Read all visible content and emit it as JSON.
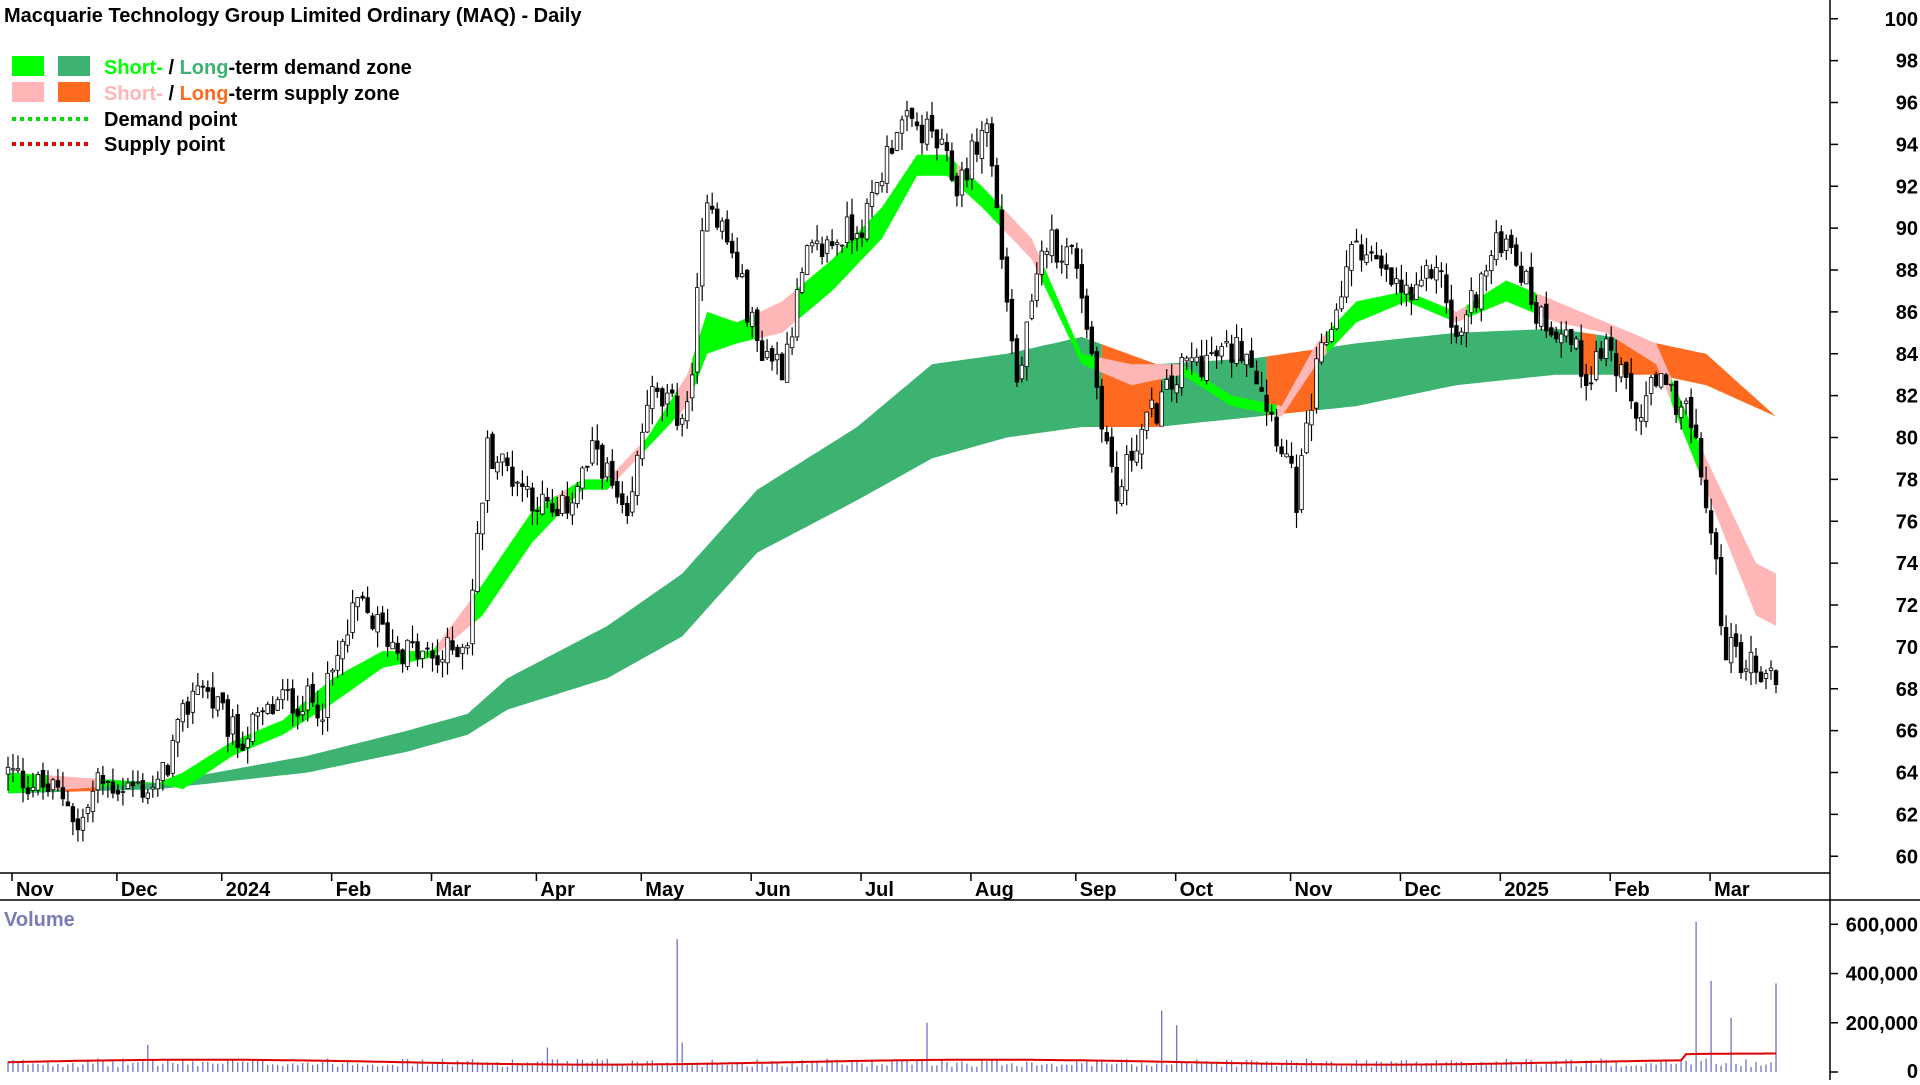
{
  "title": "Macquarie Technology Group Limited Ordinary (MAQ) - Daily",
  "legend": {
    "demand": {
      "short": "Short-",
      "slash": " / ",
      "long": "Long",
      "rest": "-term demand zone"
    },
    "supply": {
      "short": "Short-",
      "slash": " / ",
      "long": "Long",
      "rest": "-term supply zone"
    },
    "demand_point": "Demand point",
    "supply_point": "Supply point"
  },
  "volume_label": "Volume",
  "colors": {
    "short_demand": "#00ff00",
    "long_demand": "#3cb371",
    "short_supply": "#ffb6b6",
    "long_supply": "#ff6a21",
    "demand_point": "#00dd00",
    "supply_point": "#ee0000",
    "volume_bar": "#7070c8",
    "volume_avg": "#dd0000"
  },
  "chart_data": [
    {
      "type": "candlestick",
      "title": "Macquarie Technology Group Limited Ordinary (MAQ) - Daily",
      "x_ticks": [
        "Nov",
        "Dec",
        "2024",
        "Feb",
        "Mar",
        "Apr",
        "May",
        "Jun",
        "Jul",
        "Aug",
        "Sep",
        "Oct",
        "Nov",
        "Dec",
        "2025",
        "Feb",
        "Mar"
      ],
      "y_ticks": [
        "100",
        "98",
        "96",
        "94",
        "92",
        "90",
        "88",
        "86",
        "84",
        "82",
        "80",
        "78",
        "76",
        "74",
        "72",
        "70",
        "68",
        "66",
        "64",
        "62",
        "60"
      ],
      "ylim": [
        59.2,
        100.8
      ],
      "n_bars": 355,
      "close_keypoints": [
        [
          0,
          64.0
        ],
        [
          12,
          62.8
        ],
        [
          14,
          61.2
        ],
        [
          18,
          63.5
        ],
        [
          30,
          63.2
        ],
        [
          38,
          68.5
        ],
        [
          46,
          65.5
        ],
        [
          55,
          67.5
        ],
        [
          63,
          67.3
        ],
        [
          70,
          72.0
        ],
        [
          78,
          70.0
        ],
        [
          86,
          69.3
        ],
        [
          92,
          70.5
        ],
        [
          96,
          79.5
        ],
        [
          110,
          76.0
        ],
        [
          118,
          79.5
        ],
        [
          124,
          75.5
        ],
        [
          128,
          82.0
        ],
        [
          136,
          81.0
        ],
        [
          140,
          92.0
        ],
        [
          146,
          88.0
        ],
        [
          150,
          84.5
        ],
        [
          155,
          83.5
        ],
        [
          160,
          88.5
        ],
        [
          172,
          90.5
        ],
        [
          178,
          95.0
        ],
        [
          185,
          94.5
        ],
        [
          190,
          92.0
        ],
        [
          196,
          95.0
        ],
        [
          202,
          82.5
        ],
        [
          208,
          89.5
        ],
        [
          214,
          88.5
        ],
        [
          218,
          82.5
        ],
        [
          222,
          77.0
        ],
        [
          226,
          80.0
        ],
        [
          236,
          83.5
        ],
        [
          244,
          84.0
        ],
        [
          248,
          84.5
        ],
        [
          256,
          79.0
        ],
        [
          258,
          77.0
        ],
        [
          262,
          83.0
        ],
        [
          270,
          89.5
        ],
        [
          276,
          87.5
        ],
        [
          282,
          86.5
        ],
        [
          286,
          88.5
        ],
        [
          290,
          84.5
        ],
        [
          294,
          87.0
        ],
        [
          300,
          90.0
        ],
        [
          306,
          86.0
        ],
        [
          312,
          85.0
        ],
        [
          316,
          83.0
        ],
        [
          320,
          84.5
        ],
        [
          326,
          81.0
        ],
        [
          330,
          82.5
        ],
        [
          336,
          81.5
        ],
        [
          340,
          77.0
        ],
        [
          344,
          70.0
        ],
        [
          350,
          69.0
        ],
        [
          354,
          68.5
        ]
      ],
      "short_term_zone_keypoints": [
        [
          0,
          64.0,
          63.0
        ],
        [
          30,
          63.5,
          63.5
        ],
        [
          35,
          64.0,
          63.2
        ],
        [
          45,
          65.5,
          64.8
        ],
        [
          55,
          66.5,
          65.8
        ],
        [
          65,
          68.5,
          67.3
        ],
        [
          75,
          69.8,
          69.0
        ],
        [
          85,
          69.8,
          69.5
        ],
        [
          95,
          73.0,
          71.5
        ],
        [
          105,
          76.5,
          75.0
        ],
        [
          115,
          78.0,
          77.5
        ],
        [
          120,
          78.0,
          77.5
        ],
        [
          128,
          80.0,
          79.5
        ],
        [
          136,
          83.0,
          81.5
        ],
        [
          140,
          86.0,
          84.0
        ],
        [
          146,
          85.5,
          84.5
        ],
        [
          155,
          86.5,
          85.0
        ],
        [
          165,
          88.5,
          87.0
        ],
        [
          175,
          91.0,
          89.5
        ],
        [
          182,
          93.5,
          92.5
        ],
        [
          188,
          93.5,
          92.5
        ],
        [
          195,
          92.0,
          91.0
        ],
        [
          205,
          89.5,
          88.5
        ],
        [
          215,
          84.0,
          83.5
        ],
        [
          225,
          83.5,
          82.5
        ],
        [
          235,
          83.5,
          83.0
        ],
        [
          245,
          82.0,
          81.5
        ],
        [
          255,
          81.5,
          81.0
        ],
        [
          262,
          84.5,
          83.5
        ],
        [
          270,
          86.5,
          85.5
        ],
        [
          280,
          87.0,
          86.5
        ],
        [
          290,
          86.0,
          85.5
        ],
        [
          300,
          87.5,
          86.5
        ],
        [
          310,
          86.5,
          85.5
        ],
        [
          320,
          85.5,
          85.0
        ],
        [
          330,
          84.5,
          83.5
        ],
        [
          340,
          79.0,
          77.5
        ],
        [
          350,
          74.0,
          71.5
        ],
        [
          354,
          73.5,
          71.0
        ]
      ],
      "long_term_zone_keypoints": [
        [
          0,
          63.5,
          63.0
        ],
        [
          30,
          63.5,
          63.2
        ],
        [
          60,
          64.8,
          64.0
        ],
        [
          80,
          66.0,
          65.0
        ],
        [
          92,
          66.8,
          65.8
        ],
        [
          100,
          68.5,
          67.0
        ],
        [
          120,
          71.0,
          68.5
        ],
        [
          135,
          73.5,
          70.5
        ],
        [
          150,
          77.5,
          74.5
        ],
        [
          170,
          80.5,
          77.0
        ],
        [
          185,
          83.5,
          79.0
        ],
        [
          200,
          84.0,
          80.0
        ],
        [
          215,
          84.8,
          80.5
        ],
        [
          230,
          83.5,
          80.5
        ],
        [
          250,
          83.8,
          81.0
        ],
        [
          270,
          84.5,
          81.5
        ],
        [
          290,
          85.0,
          82.5
        ],
        [
          310,
          85.2,
          83.0
        ],
        [
          330,
          84.5,
          83.0
        ],
        [
          340,
          84.0,
          82.5
        ],
        [
          354,
          81.0,
          81.0
        ]
      ],
      "volume_ylim": [
        0,
        650000
      ],
      "volume_y_ticks": [
        "600,000",
        "400,000",
        "200,000",
        "0"
      ],
      "volume_spikes": [
        [
          28,
          110000
        ],
        [
          108,
          100000
        ],
        [
          134,
          540000
        ],
        [
          135,
          120000
        ],
        [
          184,
          200000
        ],
        [
          231,
          250000
        ],
        [
          234,
          190000
        ],
        [
          338,
          610000
        ],
        [
          341,
          370000
        ],
        [
          345,
          220000
        ],
        [
          354,
          360000
        ]
      ],
      "volume_average": 40000
    }
  ]
}
